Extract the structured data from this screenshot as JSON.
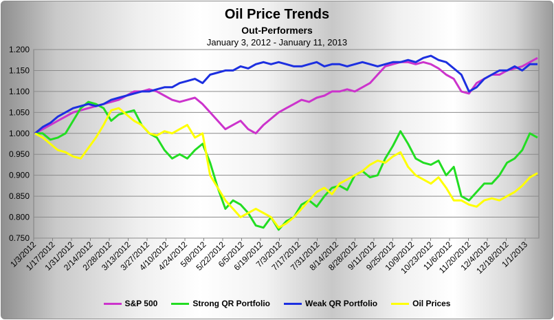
{
  "chart_data": {
    "type": "line",
    "title": "Oil Price Trends",
    "subtitle": "Out-Performers",
    "date_range": "January 3, 2012 - January 11, 2013",
    "ylim": [
      0.75,
      1.2
    ],
    "y_ticks": [
      "0.750",
      "0.800",
      "0.850",
      "0.900",
      "0.950",
      "1.000",
      "1.050",
      "1.100",
      "1.150",
      "1.200"
    ],
    "x_tick_labels": [
      "1/3/2012",
      "1/17/2012",
      "1/31/2012",
      "2/14/2012",
      "2/28/2012",
      "3/13/2012",
      "3/27/2012",
      "4/10/2012",
      "4/24/2012",
      "5/8/2012",
      "5/22/2012",
      "6/5/2012",
      "6/19/2012",
      "7/3/2012",
      "7/17/2012",
      "7/31/2012",
      "8/14/2012",
      "8/28/2012",
      "9/11/2012",
      "9/25/2012",
      "10/9/2012",
      "10/23/2012",
      "11/6/2012",
      "11/20/2012",
      "12/4/2012",
      "12/18/2012",
      "1/1/2013"
    ],
    "grid": "horizontal",
    "legend_position": "bottom",
    "series": [
      {
        "name": "S&P 500",
        "color": "#cc33cc",
        "values": [
          1.0,
          1.01,
          1.02,
          1.03,
          1.04,
          1.05,
          1.055,
          1.06,
          1.065,
          1.07,
          1.075,
          1.08,
          1.09,
          1.1,
          1.1,
          1.105,
          1.1,
          1.09,
          1.08,
          1.075,
          1.08,
          1.085,
          1.07,
          1.05,
          1.03,
          1.01,
          1.02,
          1.03,
          1.01,
          1.0,
          1.02,
          1.035,
          1.05,
          1.06,
          1.07,
          1.08,
          1.075,
          1.085,
          1.09,
          1.1,
          1.1,
          1.105,
          1.1,
          1.11,
          1.12,
          1.14,
          1.16,
          1.165,
          1.17,
          1.17,
          1.165,
          1.17,
          1.165,
          1.155,
          1.14,
          1.13,
          1.1,
          1.095,
          1.12,
          1.13,
          1.14,
          1.14,
          1.15,
          1.155,
          1.16,
          1.17,
          1.18
        ]
      },
      {
        "name": "Strong QR Portfolio",
        "color": "#22dd22",
        "values": [
          1.0,
          1.0,
          0.985,
          0.99,
          1.0,
          1.03,
          1.06,
          1.075,
          1.07,
          1.06,
          1.03,
          1.045,
          1.05,
          1.055,
          1.02,
          1.0,
          0.99,
          0.96,
          0.94,
          0.95,
          0.94,
          0.96,
          0.975,
          0.93,
          0.87,
          0.82,
          0.84,
          0.83,
          0.81,
          0.78,
          0.775,
          0.8,
          0.77,
          0.79,
          0.8,
          0.83,
          0.84,
          0.825,
          0.85,
          0.87,
          0.875,
          0.865,
          0.9,
          0.91,
          0.895,
          0.9,
          0.94,
          0.97,
          1.005,
          0.975,
          0.94,
          0.93,
          0.925,
          0.935,
          0.9,
          0.92,
          0.85,
          0.84,
          0.86,
          0.88,
          0.88,
          0.9,
          0.93,
          0.94,
          0.96,
          1.0,
          0.99
        ]
      },
      {
        "name": "Weak QR Portfolio",
        "color": "#1c2fe0",
        "values": [
          1.0,
          1.015,
          1.025,
          1.04,
          1.05,
          1.06,
          1.065,
          1.07,
          1.065,
          1.07,
          1.08,
          1.085,
          1.09,
          1.095,
          1.1,
          1.1,
          1.105,
          1.11,
          1.11,
          1.12,
          1.125,
          1.13,
          1.12,
          1.14,
          1.145,
          1.15,
          1.15,
          1.16,
          1.155,
          1.165,
          1.17,
          1.165,
          1.17,
          1.165,
          1.16,
          1.16,
          1.165,
          1.17,
          1.16,
          1.165,
          1.165,
          1.16,
          1.165,
          1.17,
          1.165,
          1.16,
          1.165,
          1.17,
          1.17,
          1.175,
          1.17,
          1.18,
          1.185,
          1.175,
          1.17,
          1.155,
          1.14,
          1.1,
          1.11,
          1.13,
          1.14,
          1.15,
          1.15,
          1.16,
          1.15,
          1.165,
          1.165
        ]
      },
      {
        "name": "Oil Prices",
        "color": "#ffff00",
        "values": [
          1.0,
          0.99,
          0.975,
          0.96,
          0.955,
          0.945,
          0.94,
          0.965,
          0.99,
          1.02,
          1.055,
          1.06,
          1.045,
          1.03,
          1.02,
          1.0,
          0.995,
          1.005,
          1.0,
          1.01,
          1.02,
          0.99,
          1.0,
          0.9,
          0.87,
          0.84,
          0.82,
          0.8,
          0.81,
          0.82,
          0.81,
          0.8,
          0.775,
          0.785,
          0.8,
          0.82,
          0.84,
          0.86,
          0.87,
          0.855,
          0.88,
          0.89,
          0.9,
          0.91,
          0.925,
          0.935,
          0.93,
          0.945,
          0.955,
          0.92,
          0.9,
          0.89,
          0.88,
          0.895,
          0.87,
          0.84,
          0.84,
          0.83,
          0.825,
          0.84,
          0.845,
          0.84,
          0.85,
          0.86,
          0.875,
          0.895,
          0.905
        ]
      }
    ]
  }
}
